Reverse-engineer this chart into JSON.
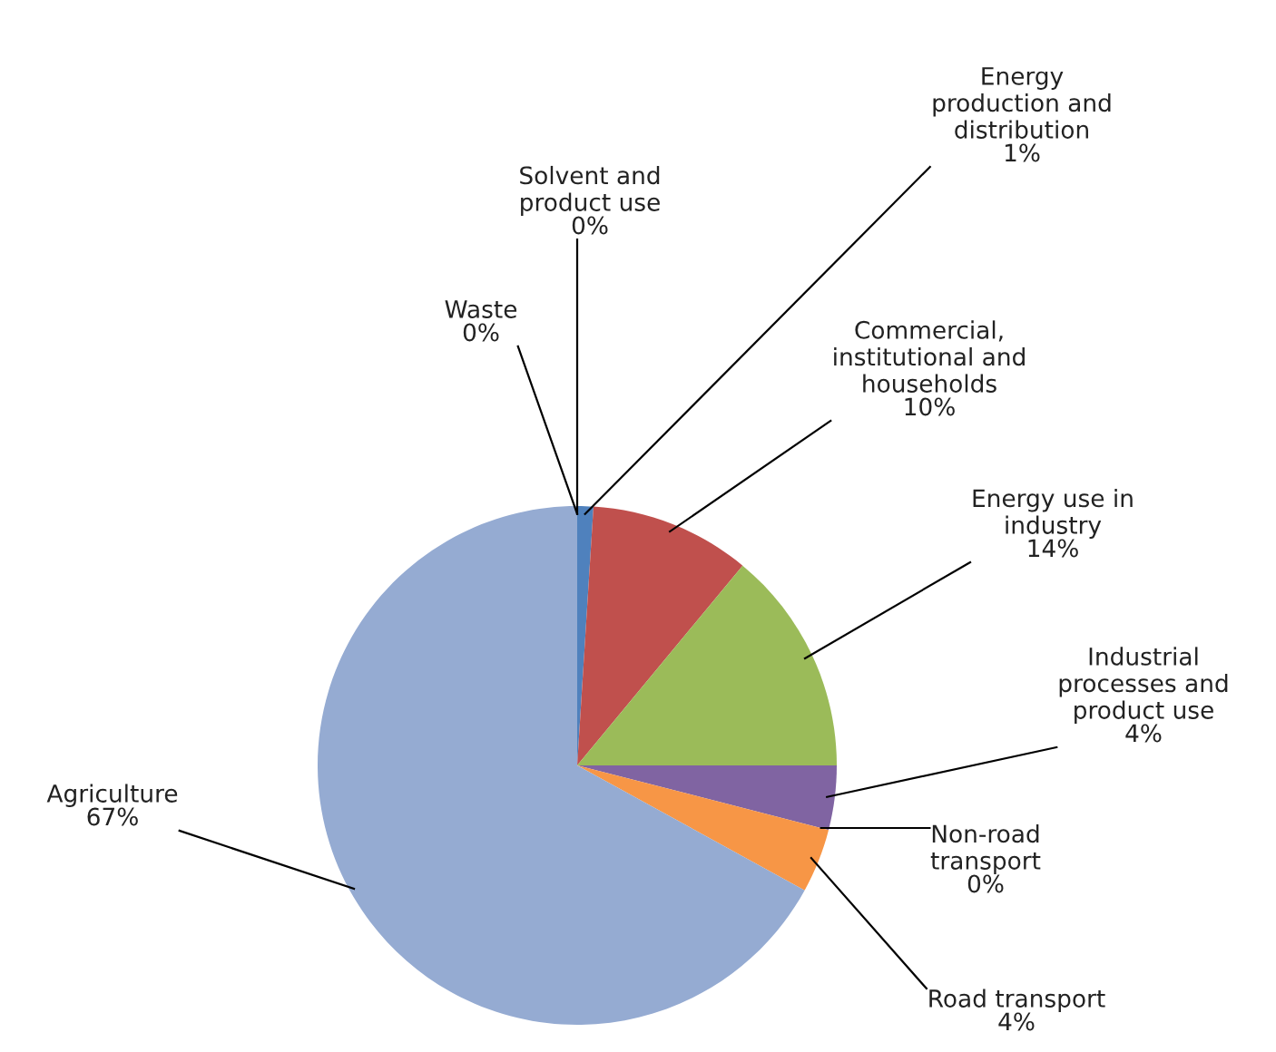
{
  "chart_data": {
    "type": "pie",
    "categories": [
      "Energy production and distribution",
      "Commercial, institutional and households",
      "Energy use in industry",
      "Industrial processes and product use",
      "Non-road transport",
      "Road transport",
      "Agriculture",
      "Waste",
      "Solvent and product use"
    ],
    "values": [
      1,
      10,
      14,
      4,
      0,
      4,
      67,
      0,
      0
    ],
    "value_labels": [
      "1%",
      "10%",
      "14%",
      "4%",
      "0%",
      "4%",
      "67%",
      "0%",
      "0%"
    ],
    "colors": [
      "#4f81bd",
      "#c0504d",
      "#9bbb59",
      "#8064a2",
      "#4bacc6",
      "#f79646",
      "#95abd2",
      "#2c4d75",
      "#772c2a"
    ]
  }
}
